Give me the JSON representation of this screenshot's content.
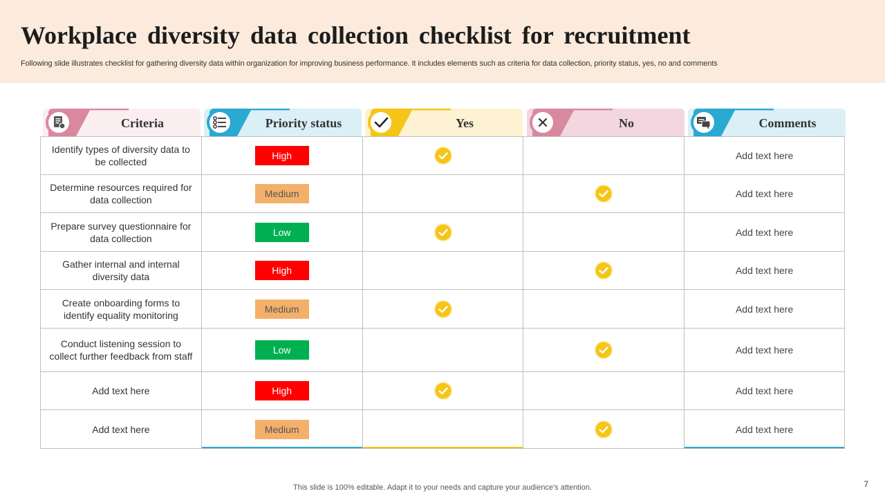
{
  "slide": {
    "title": "Workplace diversity data collection checklist for recruitment",
    "subtitle": "Following slide illustrates checklist for gathering diversity data within organization for improving business performance. It includes elements such as criteria for data collection, priority status, yes, no and comments",
    "footer": "This slide is 100% editable. Adapt it to your needs and capture your audience's attention.",
    "page_number": "7"
  },
  "columns": [
    {
      "label": "Criteria",
      "icon": "document-icon",
      "accent": "#d9899f",
      "bg": "#fbeef1"
    },
    {
      "label": "Priority status",
      "icon": "list-icon",
      "accent": "#2aa9d2",
      "bg": "#dbeff7"
    },
    {
      "label": "Yes",
      "icon": "check-icon",
      "accent": "#f5c518",
      "bg": "#fdf2d1"
    },
    {
      "label": "No",
      "icon": "cross-icon",
      "accent": "#d9899f",
      "bg": "#f3d6e0"
    },
    {
      "label": "Comments",
      "icon": "chat-icon",
      "accent": "#2aa9d2",
      "bg": "#dbeff7"
    }
  ],
  "priority_colors": {
    "High": "#ff0000",
    "Medium": "#f4b06a",
    "Low": "#00b050"
  },
  "check_color": "#f5c518",
  "rows": [
    {
      "criteria": "Identify types of diversity data to be collected",
      "priority": "High",
      "answer": "yes",
      "comment": "Add text here"
    },
    {
      "criteria": "Determine resources required for data collection",
      "priority": "Medium",
      "answer": "no",
      "comment": "Add text here"
    },
    {
      "criteria": "Prepare survey questionnaire for data collection",
      "priority": "Low",
      "answer": "yes",
      "comment": "Add text here"
    },
    {
      "criteria": "Gather internal and internal diversity data",
      "priority": "High",
      "answer": "no",
      "comment": "Add text here"
    },
    {
      "criteria": "Create onboarding forms to identify equality monitoring",
      "priority": "Medium",
      "answer": "yes",
      "comment": "Add text here"
    },
    {
      "criteria": "Conduct listening session to collect further feedback from staff",
      "priority": "Low",
      "answer": "no",
      "comment": "Add text here"
    },
    {
      "criteria": "Add text here",
      "priority": "High",
      "answer": "yes",
      "comment": "Add text here"
    },
    {
      "criteria": "Add text here",
      "priority": "Medium",
      "answer": "no",
      "comment": "Add text here"
    }
  ]
}
